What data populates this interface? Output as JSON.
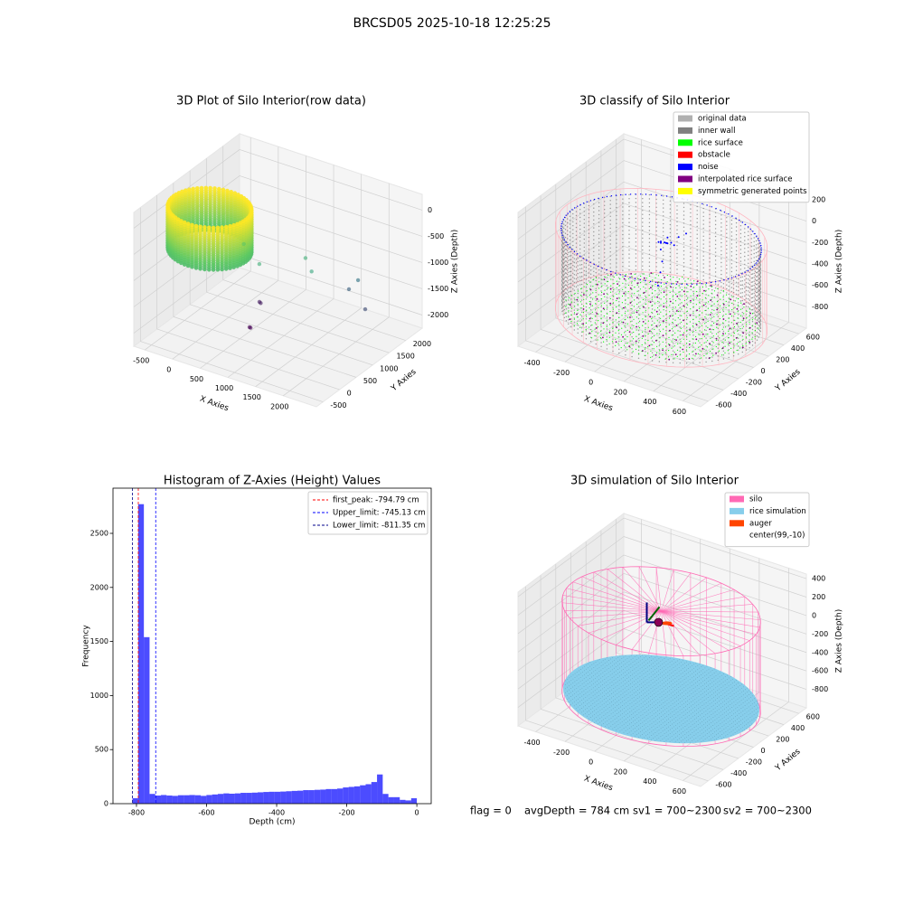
{
  "suptitle": "BRCSD05 2025-10-18 12:25:25",
  "status": [
    "flag = 0",
    "avgDepth = 784 cm",
    "sv1 = 700~2300",
    "sv2 = 700~2300"
  ],
  "chart_data": [
    {
      "type": "scatter3d",
      "title": "3D Plot of Silo Interior(row data)",
      "xlabel": "X Axies",
      "ylabel": "Y Axies",
      "zlabel": "Z Axies (Depth)",
      "xlim": [
        -700,
        2600
      ],
      "ylim": [
        -700,
        2500
      ],
      "zlim": [
        -2250,
        300
      ],
      "xticks": [
        -500,
        0,
        500,
        1000,
        1500,
        2000
      ],
      "yticks": [
        -500,
        0,
        500,
        1000,
        1500,
        2000
      ],
      "zticks": [
        -2000,
        -1500,
        -1000,
        -500,
        0
      ],
      "colormap": [
        "#440154",
        "#21918c",
        "#5ec962",
        "#fde725"
      ],
      "color_range": [
        -2000,
        0
      ],
      "series": [
        {
          "kind": "cylinder-points",
          "center": [
            -93,
            580
          ],
          "radius": 650,
          "zlim": [
            -800,
            0
          ]
        },
        {
          "kind": "points",
          "x": [
            1065,
            1280,
            590,
            323,
            433,
            470,
            1653,
            1603,
            2056,
            646,
            670
          ],
          "y": [
            1540,
            1365,
            940,
            916,
            1205,
            1180,
            2145,
            1953,
            1687,
            548,
            540
          ],
          "z": [
            -1000,
            -1100,
            -1000,
            -700,
            -1900,
            -1900,
            -1500,
            -1600,
            -1700,
            -2000,
            -2000
          ]
        }
      ]
    },
    {
      "type": "scatter3d",
      "title": "3D classify of Silo Interior",
      "xlabel": "X Axies",
      "ylabel": "Y Axies",
      "zlabel": "Z Axies (Depth)",
      "xlim": [
        -520,
        720
      ],
      "ylim": [
        -700,
        700
      ],
      "zlim": [
        -1000,
        250
      ],
      "xticks": [
        -400,
        -200,
        0,
        200,
        400,
        600
      ],
      "yticks": [
        -600,
        -400,
        -200,
        0,
        200,
        400,
        600
      ],
      "zticks": [
        -800,
        -600,
        -400,
        -200,
        0,
        200
      ],
      "legend": "upper right",
      "series": [
        {
          "kind": "wire-cylinder",
          "color": "#ffb6c1",
          "center": [
            99,
            -10
          ],
          "radius": 640,
          "zlim": [
            -830,
            -50
          ]
        },
        {
          "name": "original data",
          "color": "#b0b0b0"
        },
        {
          "name": "inner wall",
          "color": "#808080",
          "kind": "cylinder-points",
          "center": [
            99,
            -10
          ],
          "radius": 600,
          "zlim": [
            -820,
            -80
          ]
        },
        {
          "name": "rice surface",
          "color": "#00ff00",
          "kind": "disk-points",
          "center": [
            99,
            -10
          ],
          "radius": 590,
          "z": -800,
          "step": 40
        },
        {
          "name": "obstacle",
          "color": "#ff0000"
        },
        {
          "name": "noise",
          "color": "#0000ff",
          "kind": "ring-points",
          "center": [
            99,
            -10
          ],
          "radius": 605,
          "z": -80
        },
        {
          "color": "#0000ff",
          "kind": "points",
          "x": [
            86,
            70,
            100,
            60,
            110,
            90,
            80,
            120,
            50,
            95,
            130,
            75,
            88,
            92,
            140,
            160
          ],
          "y": [
            57,
            40,
            70,
            60,
            30,
            90,
            20,
            80,
            50,
            10,
            100,
            110,
            0,
            -40,
            140,
            200
          ],
          "z": [
            -150,
            -140,
            -160,
            -170,
            -130,
            -120,
            -200,
            -150,
            -160,
            -300,
            -180,
            -190,
            -400,
            -500,
            -120,
            -110
          ]
        },
        {
          "name": "interpolated rice surface",
          "color": "#800080",
          "kind": "disk-points",
          "center": [
            99,
            -10
          ],
          "radius": 590,
          "z": -800,
          "step": 90
        },
        {
          "name": "symmetric generated points",
          "color": "#ffff00"
        }
      ]
    },
    {
      "type": "histogram",
      "title": "Histogram of Z-Axies (Height) Values",
      "xlabel": "Depth (cm)",
      "ylabel": "Frequency",
      "xlim": [
        -867,
        41
      ],
      "ylim": [
        0,
        2918
      ],
      "xticks": [
        -800,
        -600,
        -400,
        -200,
        0
      ],
      "yticks": [
        0,
        500,
        1000,
        1500,
        2000,
        2500
      ],
      "color": "#0000ff",
      "alpha": 0.7,
      "legend": "upper right",
      "bins": [
        -811.35,
        -795.12,
        -778.9,
        -762.67,
        -746.44,
        -730.22,
        -713.99,
        -697.76,
        -681.54,
        -665.31,
        -649.08,
        -632.85,
        -616.63,
        -600.4,
        -584.17,
        -567.95,
        -551.72,
        -535.49,
        -519.27,
        -503.04,
        -486.81,
        -470.58,
        -454.36,
        -438.13,
        -421.9,
        -405.68,
        -389.45,
        -373.22,
        -357.0,
        -340.77,
        -324.54,
        -308.31,
        -292.09,
        -275.86,
        -259.63,
        -243.41,
        -227.18,
        -210.95,
        -194.73,
        -178.5,
        -162.27,
        -146.04,
        -129.82,
        -113.59,
        -97.36,
        -81.14,
        -64.91,
        -48.68,
        -32.46,
        -16.23,
        0
      ],
      "counts": [
        50,
        2770,
        1540,
        90,
        75,
        80,
        75,
        72,
        78,
        78,
        80,
        78,
        72,
        80,
        85,
        90,
        95,
        92,
        95,
        100,
        100,
        102,
        105,
        108,
        110,
        110,
        112,
        115,
        118,
        120,
        125,
        125,
        128,
        130,
        135,
        135,
        140,
        150,
        155,
        160,
        170,
        180,
        200,
        270,
        90,
        60,
        60,
        35,
        30,
        50
      ],
      "vlines": [
        {
          "label": "first_peak: -794.79 cm",
          "value": -794.79,
          "color": "#ff0000"
        },
        {
          "label": "Upper_limit: -745.13 cm",
          "value": -745.13,
          "color": "#0000ff"
        },
        {
          "label": "Lower_limit: -811.35 cm",
          "value": -811.35,
          "color": "#00008b"
        }
      ]
    },
    {
      "type": "scatter3d",
      "title": "3D simulation of Silo Interior",
      "xlabel": "X Axies",
      "ylabel": "Y Axies",
      "zlabel": "Z Axies (Depth)",
      "xlim": [
        -520,
        720
      ],
      "ylim": [
        -700,
        700
      ],
      "zlim": [
        -1000,
        450
      ],
      "xticks": [
        -400,
        -200,
        0,
        200,
        400,
        600
      ],
      "yticks": [
        -600,
        -400,
        -200,
        0,
        200,
        400,
        600
      ],
      "zticks": [
        -800,
        -600,
        -400,
        -200,
        0,
        200,
        400
      ],
      "legend": "upper right",
      "series": [
        {
          "name": "silo",
          "color": "#ff69b4",
          "kind": "wire-cylinder",
          "center": [
            99,
            -10
          ],
          "radius": 600,
          "zlim": [
            -830,
            150
          ],
          "lid": true
        },
        {
          "name": "rice simulation",
          "color": "#87ceeb",
          "kind": "disk-fill",
          "center": [
            99,
            -10
          ],
          "radius": 590,
          "z": -800
        },
        {
          "name": "auger",
          "color": "#ff4500",
          "kind": "auger",
          "center": [
            99,
            -10
          ],
          "z": 30
        },
        {
          "name": "center(99,-10)",
          "color": "#ffffff",
          "kind": "center",
          "center": [
            99,
            -10
          ],
          "z": 30
        }
      ]
    }
  ]
}
